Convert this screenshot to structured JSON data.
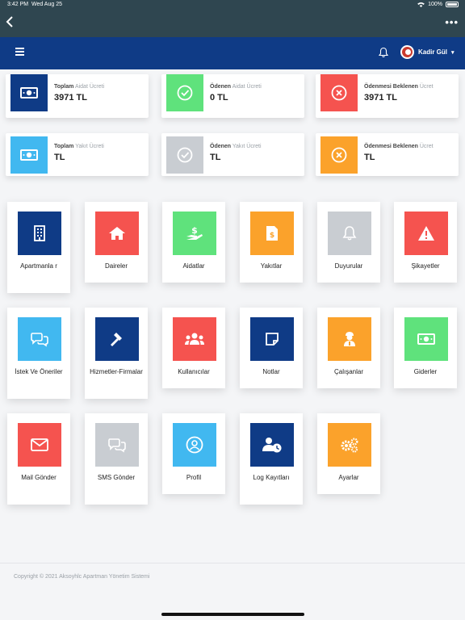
{
  "status": {
    "time": "3:42 PM",
    "date": "Wed Aug 25",
    "battery": "100%"
  },
  "navbar": {
    "more_label": "•••"
  },
  "appbar": {
    "user_name": "Kadir Gül"
  },
  "colors": {
    "navy": "#0f3b86",
    "red": "#f5534f",
    "green": "#5fe27c",
    "orange": "#fba22b",
    "gray": "#c9cdd2",
    "blue": "#41b8f0",
    "statusbar": "#2f4650"
  },
  "stats": [
    {
      "prefix": "Toplam",
      "suffix": "Aidat Ücreti",
      "value": "3971 TL",
      "icon": "money-icon",
      "color": "#0f3b86"
    },
    {
      "prefix": "Ödenen",
      "suffix": "Aidat Ücreti",
      "value": "0 TL",
      "icon": "check-circle-icon",
      "color": "#5fe27c"
    },
    {
      "prefix": "Ödenmesi Beklenen",
      "suffix": "Ücret",
      "value": "3971 TL",
      "icon": "x-circle-icon",
      "color": "#f5534f"
    },
    {
      "prefix": "Toplam",
      "suffix": "Yakıt Ücreti",
      "value": "TL",
      "icon": "money-icon",
      "color": "#41b8f0"
    },
    {
      "prefix": "Ödenen",
      "suffix": "Yakıt Ücreti",
      "value": "TL",
      "icon": "check-circle-icon",
      "color": "#c9cdd2"
    },
    {
      "prefix": "Ödenmesi Beklenen",
      "suffix": "Ücret",
      "value": "TL",
      "icon": "x-circle-icon",
      "color": "#fba22b"
    }
  ],
  "tiles": [
    {
      "label": "Apartmanla r",
      "icon": "building-icon",
      "color": "#0f3b86"
    },
    {
      "label": "Daireler",
      "icon": "home-icon",
      "color": "#f5534f"
    },
    {
      "label": "Aidatlar",
      "icon": "hand-money-icon",
      "color": "#5fe27c"
    },
    {
      "label": "Yakıtlar",
      "icon": "invoice-icon",
      "color": "#fba22b"
    },
    {
      "label": "Duyurular",
      "icon": "bell-icon",
      "color": "#c9cdd2"
    },
    {
      "label": "Şikayetler",
      "icon": "warning-icon",
      "color": "#f5534f"
    },
    {
      "label": "İstek Ve Öneriler",
      "icon": "chat-icon",
      "color": "#41b8f0"
    },
    {
      "label": "Hizmetler-Firmalar",
      "icon": "hammer-icon",
      "color": "#0f3b86"
    },
    {
      "label": "Kullanıcılar",
      "icon": "users-icon",
      "color": "#f5534f"
    },
    {
      "label": "Notlar",
      "icon": "note-icon",
      "color": "#0f3b86"
    },
    {
      "label": "Çalışanlar",
      "icon": "worker-icon",
      "color": "#fba22b"
    },
    {
      "label": "Giderler",
      "icon": "money-icon",
      "color": "#5fe27c"
    },
    {
      "label": "Mail Gönder",
      "icon": "mail-icon",
      "color": "#f5534f"
    },
    {
      "label": "SMS Gönder",
      "icon": "chat-icon",
      "color": "#c9cdd2"
    },
    {
      "label": "Profil",
      "icon": "profile-icon",
      "color": "#41b8f0"
    },
    {
      "label": "Log Kayıtları",
      "icon": "user-clock-icon",
      "color": "#0f3b86"
    },
    {
      "label": "Ayarlar",
      "icon": "gears-icon",
      "color": "#fba22b"
    }
  ],
  "footer": {
    "text": "Copyright © 2021 Aksoyhlc Apartman Yönetim Sistemi"
  }
}
